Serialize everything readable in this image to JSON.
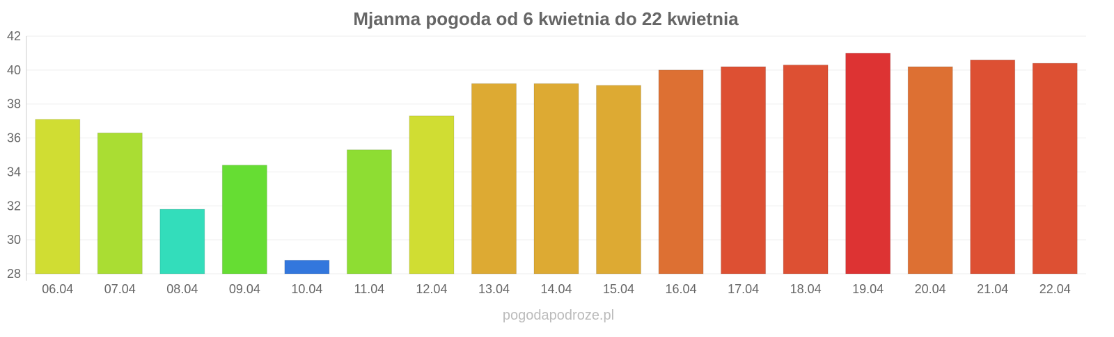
{
  "chart_data": {
    "type": "bar",
    "title": "Mjanma pogoda od 6 kwietnia do 22 kwietnia",
    "xlabel": "",
    "ylabel": "",
    "ylim": [
      28,
      42
    ],
    "yticks": [
      28,
      30,
      32,
      34,
      36,
      38,
      40,
      42
    ],
    "grid": true,
    "categories": [
      "06.04",
      "07.04",
      "08.04",
      "09.04",
      "10.04",
      "11.04",
      "12.04",
      "13.04",
      "14.04",
      "15.04",
      "16.04",
      "17.04",
      "18.04",
      "19.04",
      "20.04",
      "21.04",
      "22.04"
    ],
    "values": [
      37.1,
      36.3,
      31.8,
      34.4,
      28.8,
      35.3,
      37.3,
      39.2,
      39.2,
      39.1,
      40.0,
      40.2,
      40.3,
      41.0,
      40.2,
      40.6,
      40.4
    ],
    "colors": [
      "#d0dd33",
      "#aadd33",
      "#33ddbb",
      "#66dd33",
      "#3377dd",
      "#8edd33",
      "#d0dd33",
      "#ddaa33",
      "#ddaa33",
      "#ddaa33",
      "#dd7033",
      "#dd5033",
      "#dd5033",
      "#dd3333",
      "#dd7033",
      "#dd5033",
      "#dd5033"
    ]
  },
  "watermark": "pogodapodroze.pl"
}
